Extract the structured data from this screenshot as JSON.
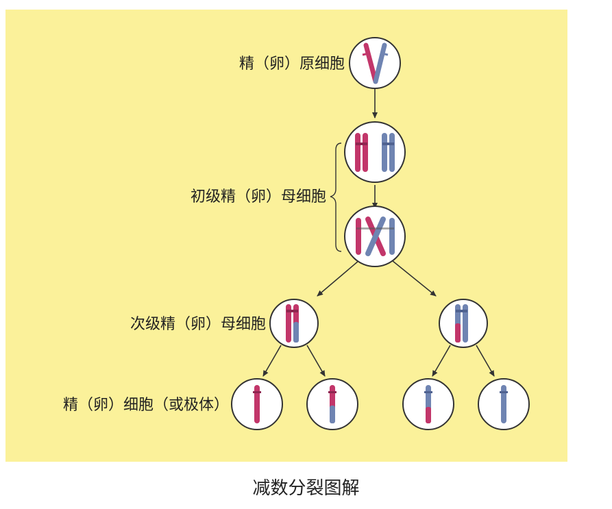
{
  "labels": {
    "spermatogonium": "精（卵）原细胞",
    "primary": "初级精（卵）母细胞",
    "secondary": "次级精（卵）母细胞",
    "gamete": "精（卵）细胞（或极体）"
  },
  "caption": "减数分裂图解",
  "colors": {
    "background": "#fbf19a",
    "maternal": "#c2366a",
    "paternal": "#6f84b2",
    "cell_fill": "#ffffff",
    "outline": "#333333"
  }
}
